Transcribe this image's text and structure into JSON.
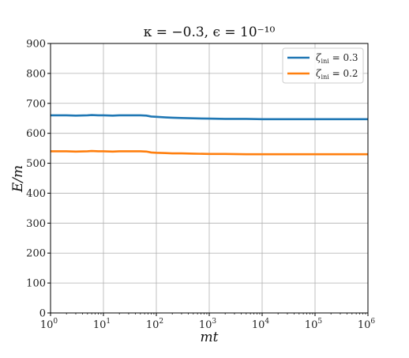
{
  "chart_data": {
    "type": "line",
    "title": "κ = −0.3,  ϵ = 10⁻¹⁰",
    "xlabel": "mt",
    "ylabel": "E/m",
    "xscale": "log",
    "xlim": [
      1,
      1000000
    ],
    "ylim": [
      0,
      900
    ],
    "grid": true,
    "legend_position": "top-right",
    "x_ticks": [
      {
        "value": 1,
        "base": "10",
        "exp": "0"
      },
      {
        "value": 10,
        "base": "10",
        "exp": "1"
      },
      {
        "value": 100,
        "base": "10",
        "exp": "2"
      },
      {
        "value": 1000,
        "base": "10",
        "exp": "3"
      },
      {
        "value": 10000,
        "base": "10",
        "exp": "4"
      },
      {
        "value": 100000,
        "base": "10",
        "exp": "5"
      },
      {
        "value": 1000000,
        "base": "10",
        "exp": "6"
      }
    ],
    "y_ticks": [
      {
        "value": 0,
        "label": "0"
      },
      {
        "value": 100,
        "label": "100"
      },
      {
        "value": 200,
        "label": "200"
      },
      {
        "value": 300,
        "label": "300"
      },
      {
        "value": 400,
        "label": "400"
      },
      {
        "value": 500,
        "label": "500"
      },
      {
        "value": 600,
        "label": "600"
      },
      {
        "value": 700,
        "label": "700"
      },
      {
        "value": 800,
        "label": "800"
      },
      {
        "value": 900,
        "label": "900"
      }
    ],
    "series": [
      {
        "name": "ζini = 0.3",
        "legend_symbol": "ζ",
        "legend_sub": "ini",
        "legend_value": " = 0.3",
        "color": "#1f77b4",
        "x": [
          1,
          2,
          3,
          5,
          6,
          8,
          10,
          15,
          20,
          30,
          40,
          50,
          65,
          80,
          100,
          150,
          200,
          300,
          500,
          1000,
          2000,
          5000,
          10000,
          100000,
          1000000
        ],
        "y": [
          660,
          660,
          659,
          660,
          661,
          660,
          660,
          659,
          660,
          660,
          660,
          660,
          659,
          656,
          655,
          653,
          652,
          651,
          650,
          649,
          648,
          648,
          647,
          647,
          647
        ]
      },
      {
        "name": "ζini = 0.2",
        "legend_symbol": "ζ",
        "legend_sub": "ini",
        "legend_value": " = 0.2",
        "color": "#ff7f0e",
        "x": [
          1,
          2,
          3,
          5,
          6,
          8,
          10,
          15,
          20,
          30,
          40,
          50,
          65,
          80,
          100,
          150,
          200,
          300,
          500,
          1000,
          2000,
          5000,
          10000,
          100000,
          1000000
        ],
        "y": [
          540,
          540,
          539,
          540,
          541,
          540,
          540,
          539,
          540,
          540,
          540,
          540,
          539,
          536,
          535,
          534,
          533,
          533,
          532,
          531,
          531,
          530,
          530,
          530,
          530
        ]
      }
    ]
  }
}
